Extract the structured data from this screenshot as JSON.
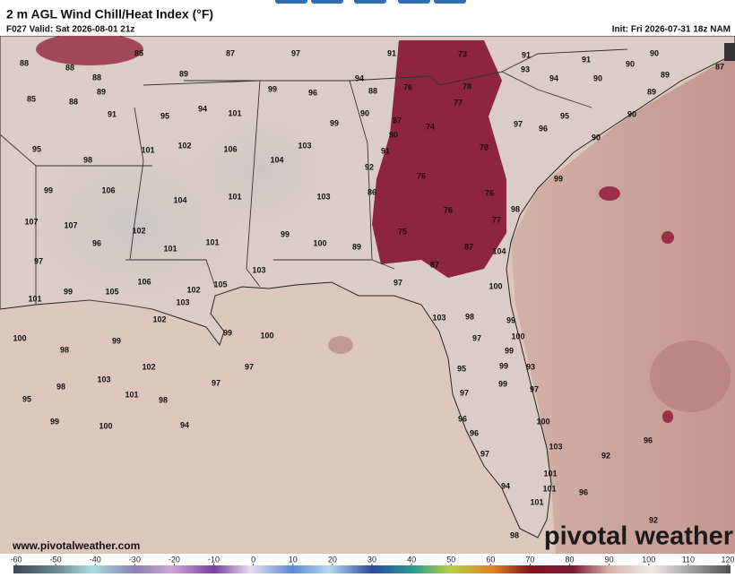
{
  "header": {
    "title": "2 m AGL Wind Chill/Heat Index (°F)",
    "valid": "F027 Valid: Sat 2026-08-01 21z",
    "init": "Init: Fri 2026-07-31 18z NAM"
  },
  "map": {
    "station_values": [
      88,
      85,
      87,
      97,
      91,
      73,
      91,
      91,
      90,
      87,
      88,
      88,
      89,
      93,
      94,
      90,
      90,
      89,
      85,
      88,
      89,
      94,
      99,
      96,
      88,
      76,
      78,
      89,
      77,
      91,
      95,
      94,
      101,
      90,
      95,
      90,
      87,
      74,
      99,
      97,
      96,
      90,
      95,
      101,
      102,
      106,
      103,
      90,
      91,
      78,
      98,
      104,
      92,
      99,
      106,
      104,
      101,
      103,
      86,
      76,
      76,
      99,
      107,
      107,
      102,
      76,
      77,
      98,
      96,
      101,
      101,
      99,
      100,
      89,
      75,
      87,
      97,
      103,
      87,
      104,
      106,
      102,
      105,
      97,
      100,
      101,
      99,
      105,
      103,
      102,
      103,
      98,
      99,
      100,
      99,
      99,
      100,
      97,
      100,
      98,
      99,
      102,
      97,
      95,
      99,
      93,
      103,
      97,
      99,
      97,
      98,
      101,
      98,
      97,
      95,
      99,
      100,
      94,
      96,
      100,
      96,
      96,
      103,
      97,
      92,
      101,
      101,
      96,
      94,
      101,
      92,
      98
    ]
  },
  "footer": {
    "url": "www.pivotalweather.com",
    "logo": "pivotal weather"
  },
  "colorbar": {
    "ticks": [
      -60,
      -50,
      -40,
      -30,
      -20,
      -10,
      0,
      10,
      20,
      30,
      40,
      50,
      60,
      70,
      80,
      90,
      100,
      110,
      120
    ]
  }
}
